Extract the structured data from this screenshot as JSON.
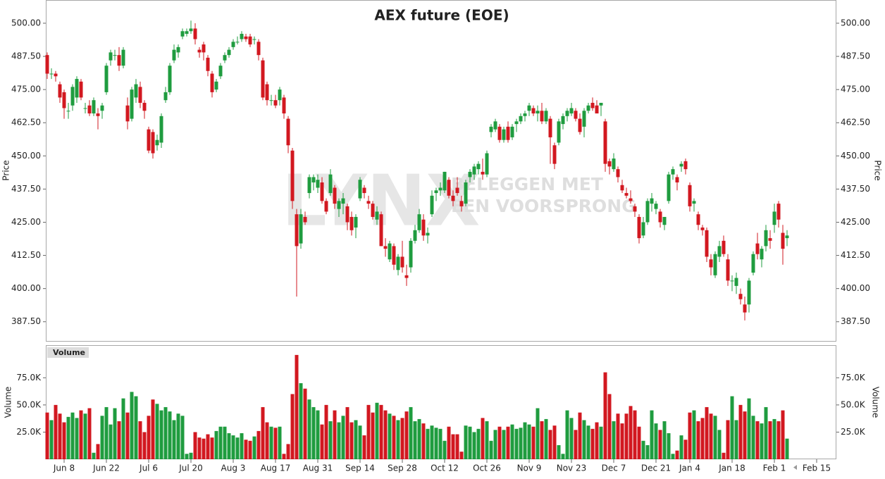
{
  "watermark": {
    "logo": "LYNX",
    "line1": "BELEGGEN MET",
    "line2": "EEN VOORSPRONG"
  },
  "chart_data": [
    {
      "type": "candlestick",
      "title": "AEX future (EOE)",
      "y_label": "Price",
      "up_color": "#1f9c3f",
      "down_color": "#d21820",
      "ylim": [
        380,
        508.75
      ],
      "yticks": [
        {
          "value": 387.5,
          "label": "387.50"
        },
        {
          "value": 400,
          "label": "400.00"
        },
        {
          "value": 412.5,
          "label": "412.50"
        },
        {
          "value": 425,
          "label": "425.00"
        },
        {
          "value": 437.5,
          "label": "437.50"
        },
        {
          "value": 450,
          "label": "450.00"
        },
        {
          "value": 462.5,
          "label": "462.50"
        },
        {
          "value": 475,
          "label": "475.00"
        },
        {
          "value": 487.5,
          "label": "487.50"
        },
        {
          "value": 500,
          "label": "500.00"
        }
      ],
      "categories": [
        null,
        null,
        null,
        null,
        "Jun 8",
        null,
        null,
        null,
        null,
        null,
        null,
        null,
        null,
        null,
        "Jun 22",
        null,
        null,
        null,
        null,
        null,
        null,
        null,
        null,
        null,
        "Jul 6",
        null,
        null,
        null,
        null,
        null,
        null,
        null,
        null,
        null,
        "Jul 20",
        null,
        null,
        null,
        null,
        null,
        null,
        null,
        null,
        null,
        "Aug 3",
        null,
        null,
        null,
        null,
        null,
        null,
        null,
        null,
        null,
        "Aug 17",
        null,
        null,
        null,
        null,
        null,
        null,
        null,
        null,
        null,
        "Aug 31",
        null,
        null,
        null,
        null,
        null,
        null,
        null,
        null,
        null,
        "Sep 14",
        null,
        null,
        null,
        null,
        null,
        null,
        null,
        null,
        null,
        "Sep 28",
        null,
        null,
        null,
        null,
        null,
        null,
        null,
        null,
        null,
        "Oct 12",
        null,
        null,
        null,
        null,
        null,
        null,
        null,
        null,
        null,
        "Oct 26",
        null,
        null,
        null,
        null,
        null,
        null,
        null,
        null,
        null,
        "Nov 9",
        null,
        null,
        null,
        null,
        null,
        null,
        null,
        null,
        null,
        "Nov 23",
        null,
        null,
        null,
        null,
        null,
        null,
        null,
        null,
        null,
        "Dec 7",
        null,
        null,
        null,
        null,
        null,
        null,
        null,
        null,
        null,
        "Dec 21",
        null,
        null,
        null,
        null,
        null,
        null,
        null,
        "Jan 4",
        null,
        null,
        null,
        null,
        null,
        null,
        null,
        null,
        null,
        "Jan 18",
        null,
        null,
        null,
        null,
        null,
        null,
        null,
        null,
        null,
        "Feb 1",
        null,
        null,
        null,
        null,
        null,
        null,
        null,
        null,
        null,
        "Feb 15",
        null,
        null,
        null,
        null
      ],
      "open": [
        488,
        481,
        481,
        477,
        474,
        467,
        469,
        472,
        478,
        468,
        469,
        466,
        466,
        467,
        474,
        486,
        488,
        488,
        484,
        469,
        464,
        472,
        476,
        470,
        460,
        459,
        454,
        455,
        471,
        474,
        486,
        489,
        495,
        496,
        497,
        498,
        490,
        492,
        487,
        481,
        475,
        480,
        486,
        488,
        491,
        493,
        494,
        495,
        495,
        494,
        493,
        486,
        477,
        471,
        471,
        471,
        472,
        464,
        452,
        428,
        417,
        427,
        436,
        440,
        438,
        440,
        433,
        436,
        438,
        430,
        432,
        431,
        427,
        423,
        434,
        438,
        433,
        432,
        426,
        428,
        416,
        411,
        416,
        407,
        412,
        405,
        408,
        418,
        422,
        426,
        420,
        428,
        436,
        437,
        437,
        441,
        435,
        438,
        433,
        432,
        442,
        443,
        445,
        444,
        443,
        459,
        460,
        461,
        456,
        461,
        457,
        462,
        463,
        465,
        467,
        468,
        466,
        467,
        463,
        464,
        454,
        455,
        462,
        465,
        466,
        467,
        464,
        461,
        467,
        470,
        469,
        469,
        463,
        448,
        445,
        445,
        439,
        436,
        434,
        431,
        427,
        420,
        425,
        432,
        430,
        429,
        424,
        433,
        443,
        442,
        446,
        448,
        439,
        432,
        428,
        423,
        422,
        411,
        405,
        412,
        418,
        411,
        403,
        401,
        398,
        394,
        394,
        406,
        417,
        411,
        416,
        419,
        424,
        432,
        421,
        419,
        null,
        null,
        null,
        null,
        null,
        null,
        null,
        null,
        null,
        null,
        null
      ],
      "high": [
        489,
        483,
        482,
        478,
        475,
        470,
        477,
        480,
        479,
        470,
        471,
        472,
        468,
        470,
        485,
        490,
        490,
        491,
        491,
        472,
        476,
        479,
        478,
        471,
        461,
        460,
        458,
        466,
        476,
        485,
        492,
        492,
        498,
        498,
        501,
        500,
        491,
        493,
        488,
        482,
        479,
        485,
        489,
        491,
        494,
        495,
        497,
        496,
        496,
        495,
        494,
        487,
        478,
        473,
        473,
        476,
        473,
        465,
        453,
        430,
        430,
        429,
        443,
        443,
        443,
        442,
        434,
        445,
        439,
        434,
        436,
        432,
        429,
        428,
        442,
        439,
        435,
        433,
        431,
        429,
        419,
        418,
        417,
        413,
        418,
        409,
        419,
        424,
        430,
        428,
        423,
        437,
        438,
        440,
        444,
        442,
        437,
        442,
        435,
        441,
        445,
        447,
        448,
        449,
        452,
        462,
        464,
        462,
        461,
        463,
        462,
        464,
        466,
        467,
        470,
        469,
        469,
        470,
        468,
        465,
        455,
        464,
        466,
        468,
        470,
        468,
        466,
        468,
        470,
        472,
        471,
        470,
        464,
        449,
        451,
        446,
        441,
        438,
        437,
        432,
        428,
        427,
        434,
        436,
        433,
        430,
        427,
        444,
        446,
        443,
        448,
        449,
        440,
        434,
        429,
        424,
        423,
        413,
        414,
        418,
        420,
        413,
        405,
        406,
        400,
        397,
        404,
        414,
        421,
        416,
        424,
        422,
        432,
        433,
        424,
        422,
        null,
        null,
        null,
        null,
        null,
        null,
        null,
        null,
        null,
        null,
        null
      ],
      "low": [
        479,
        479,
        478,
        470,
        464,
        464,
        467,
        470,
        471,
        466,
        465,
        465,
        460,
        464,
        473,
        484,
        486,
        482,
        483,
        460,
        463,
        470,
        468,
        464,
        451,
        449,
        452,
        453,
        470,
        473,
        485,
        487,
        494,
        495,
        496,
        492,
        487,
        486,
        480,
        472,
        474,
        479,
        485,
        487,
        490,
        492,
        493,
        493,
        491,
        492,
        486,
        471,
        469,
        469,
        468,
        469,
        464,
        451,
        430,
        397,
        415,
        424,
        434,
        437,
        436,
        432,
        428,
        435,
        430,
        427,
        428,
        422,
        420,
        419,
        433,
        434,
        430,
        426,
        424,
        416,
        412,
        410,
        407,
        405,
        406,
        401,
        406,
        417,
        421,
        418,
        417,
        427,
        433,
        435,
        436,
        434,
        431,
        435,
        429,
        431,
        440,
        441,
        443,
        441,
        442,
        457,
        459,
        455,
        455,
        455,
        456,
        459,
        462,
        463,
        465,
        465,
        463,
        462,
        462,
        447,
        445,
        454,
        460,
        463,
        465,
        463,
        458,
        457,
        466,
        467,
        466,
        465,
        444,
        443,
        444,
        440,
        436,
        434,
        432,
        427,
        417,
        419,
        424,
        429,
        428,
        423,
        422,
        432,
        441,
        437,
        444,
        443,
        429,
        429,
        422,
        420,
        410,
        405,
        404,
        410,
        412,
        401,
        399,
        398,
        394,
        388,
        391,
        405,
        411,
        408,
        414,
        415,
        421,
        423,
        409,
        416,
        null,
        null,
        null,
        null,
        null,
        null,
        null,
        null,
        null,
        null,
        null
      ],
      "close": [
        481,
        481,
        480,
        472,
        468,
        467,
        476,
        479,
        472,
        468,
        466,
        471,
        465,
        469,
        484,
        489,
        488,
        484,
        490,
        463,
        475,
        477,
        470,
        467,
        452,
        451,
        456,
        465,
        474,
        484,
        490,
        491,
        497,
        497,
        498,
        494,
        489,
        489,
        482,
        474,
        478,
        484,
        488,
        490,
        493,
        493,
        496,
        494,
        492,
        494,
        488,
        472,
        471,
        471,
        469,
        475,
        466,
        454,
        433,
        416,
        428,
        425,
        442,
        442,
        441,
        433,
        429,
        443,
        432,
        433,
        434,
        425,
        422,
        427,
        441,
        436,
        432,
        427,
        429,
        416,
        415,
        417,
        409,
        412,
        408,
        404,
        418,
        422,
        428,
        420,
        421,
        435,
        437,
        438,
        444,
        435,
        433,
        436,
        431,
        440,
        444,
        446,
        447,
        443,
        451,
        461,
        463,
        456,
        460,
        456,
        461,
        463,
        465,
        466,
        469,
        466,
        467,
        463,
        467,
        457,
        447,
        463,
        465,
        467,
        468,
        464,
        459,
        467,
        469,
        468,
        466,
        470,
        447,
        446,
        449,
        442,
        437,
        435,
        433,
        429,
        419,
        425,
        433,
        434,
        432,
        425,
        427,
        443,
        445,
        440,
        447,
        445,
        431,
        433,
        424,
        422,
        412,
        408,
        413,
        416,
        413,
        403,
        403,
        404,
        396,
        391,
        403,
        413,
        413,
        415,
        422,
        418,
        429,
        426,
        415,
        420,
        null,
        null,
        null,
        null,
        null,
        null,
        null,
        null,
        null,
        null,
        null
      ]
    },
    {
      "type": "bar",
      "title": "Volume",
      "y_label": "Volume",
      "ylim": [
        0,
        105000
      ],
      "yticks": [
        {
          "value": 25000,
          "label": "25.0K"
        },
        {
          "value": 50000,
          "label": "50.0K"
        },
        {
          "value": 75000,
          "label": "75.0K"
        }
      ],
      "values": [
        43000,
        36000,
        50000,
        42000,
        34000,
        39000,
        43000,
        38000,
        45000,
        42000,
        47000,
        6000,
        14000,
        40000,
        48000,
        32000,
        47000,
        35000,
        56000,
        43000,
        62000,
        58000,
        35000,
        25000,
        40000,
        55000,
        51000,
        45000,
        48000,
        44000,
        36000,
        42000,
        40000,
        5000,
        6000,
        25000,
        20000,
        19000,
        23000,
        20000,
        26000,
        30000,
        30000,
        24000,
        22000,
        20000,
        24000,
        18000,
        17000,
        21000,
        26000,
        48000,
        34000,
        30000,
        29000,
        30000,
        5000,
        14000,
        60000,
        96000,
        70000,
        65000,
        55000,
        48000,
        45000,
        32000,
        50000,
        35000,
        45000,
        34000,
        40000,
        48000,
        34000,
        36000,
        31000,
        22000,
        50000,
        43000,
        52000,
        50000,
        45000,
        42000,
        40000,
        36000,
        38000,
        44000,
        48000,
        35000,
        37000,
        33000,
        28000,
        31000,
        29000,
        28000,
        17000,
        30000,
        23000,
        23000,
        7000,
        31000,
        30000,
        25000,
        28000,
        38000,
        35000,
        17000,
        27000,
        30000,
        27000,
        30000,
        32000,
        28000,
        29000,
        34000,
        32000,
        30000,
        47000,
        35000,
        37000,
        27000,
        31000,
        13000,
        5000,
        45000,
        38000,
        27000,
        43000,
        36000,
        31000,
        28000,
        34000,
        30000,
        80000,
        60000,
        35000,
        42000,
        33000,
        42000,
        49000,
        45000,
        30000,
        17000,
        13000,
        45000,
        33000,
        27000,
        35000,
        24000,
        5000,
        8000,
        22000,
        18000,
        43000,
        45000,
        35000,
        38000,
        48000,
        42000,
        40000,
        27000,
        6000,
        36000,
        58000,
        36000,
        50000,
        44000,
        56000,
        40000,
        35000,
        33000,
        48000,
        35000,
        37000,
        35000,
        45000,
        19000,
        null,
        null,
        null,
        null,
        null,
        null,
        null,
        null,
        null,
        null,
        null
      ]
    }
  ]
}
